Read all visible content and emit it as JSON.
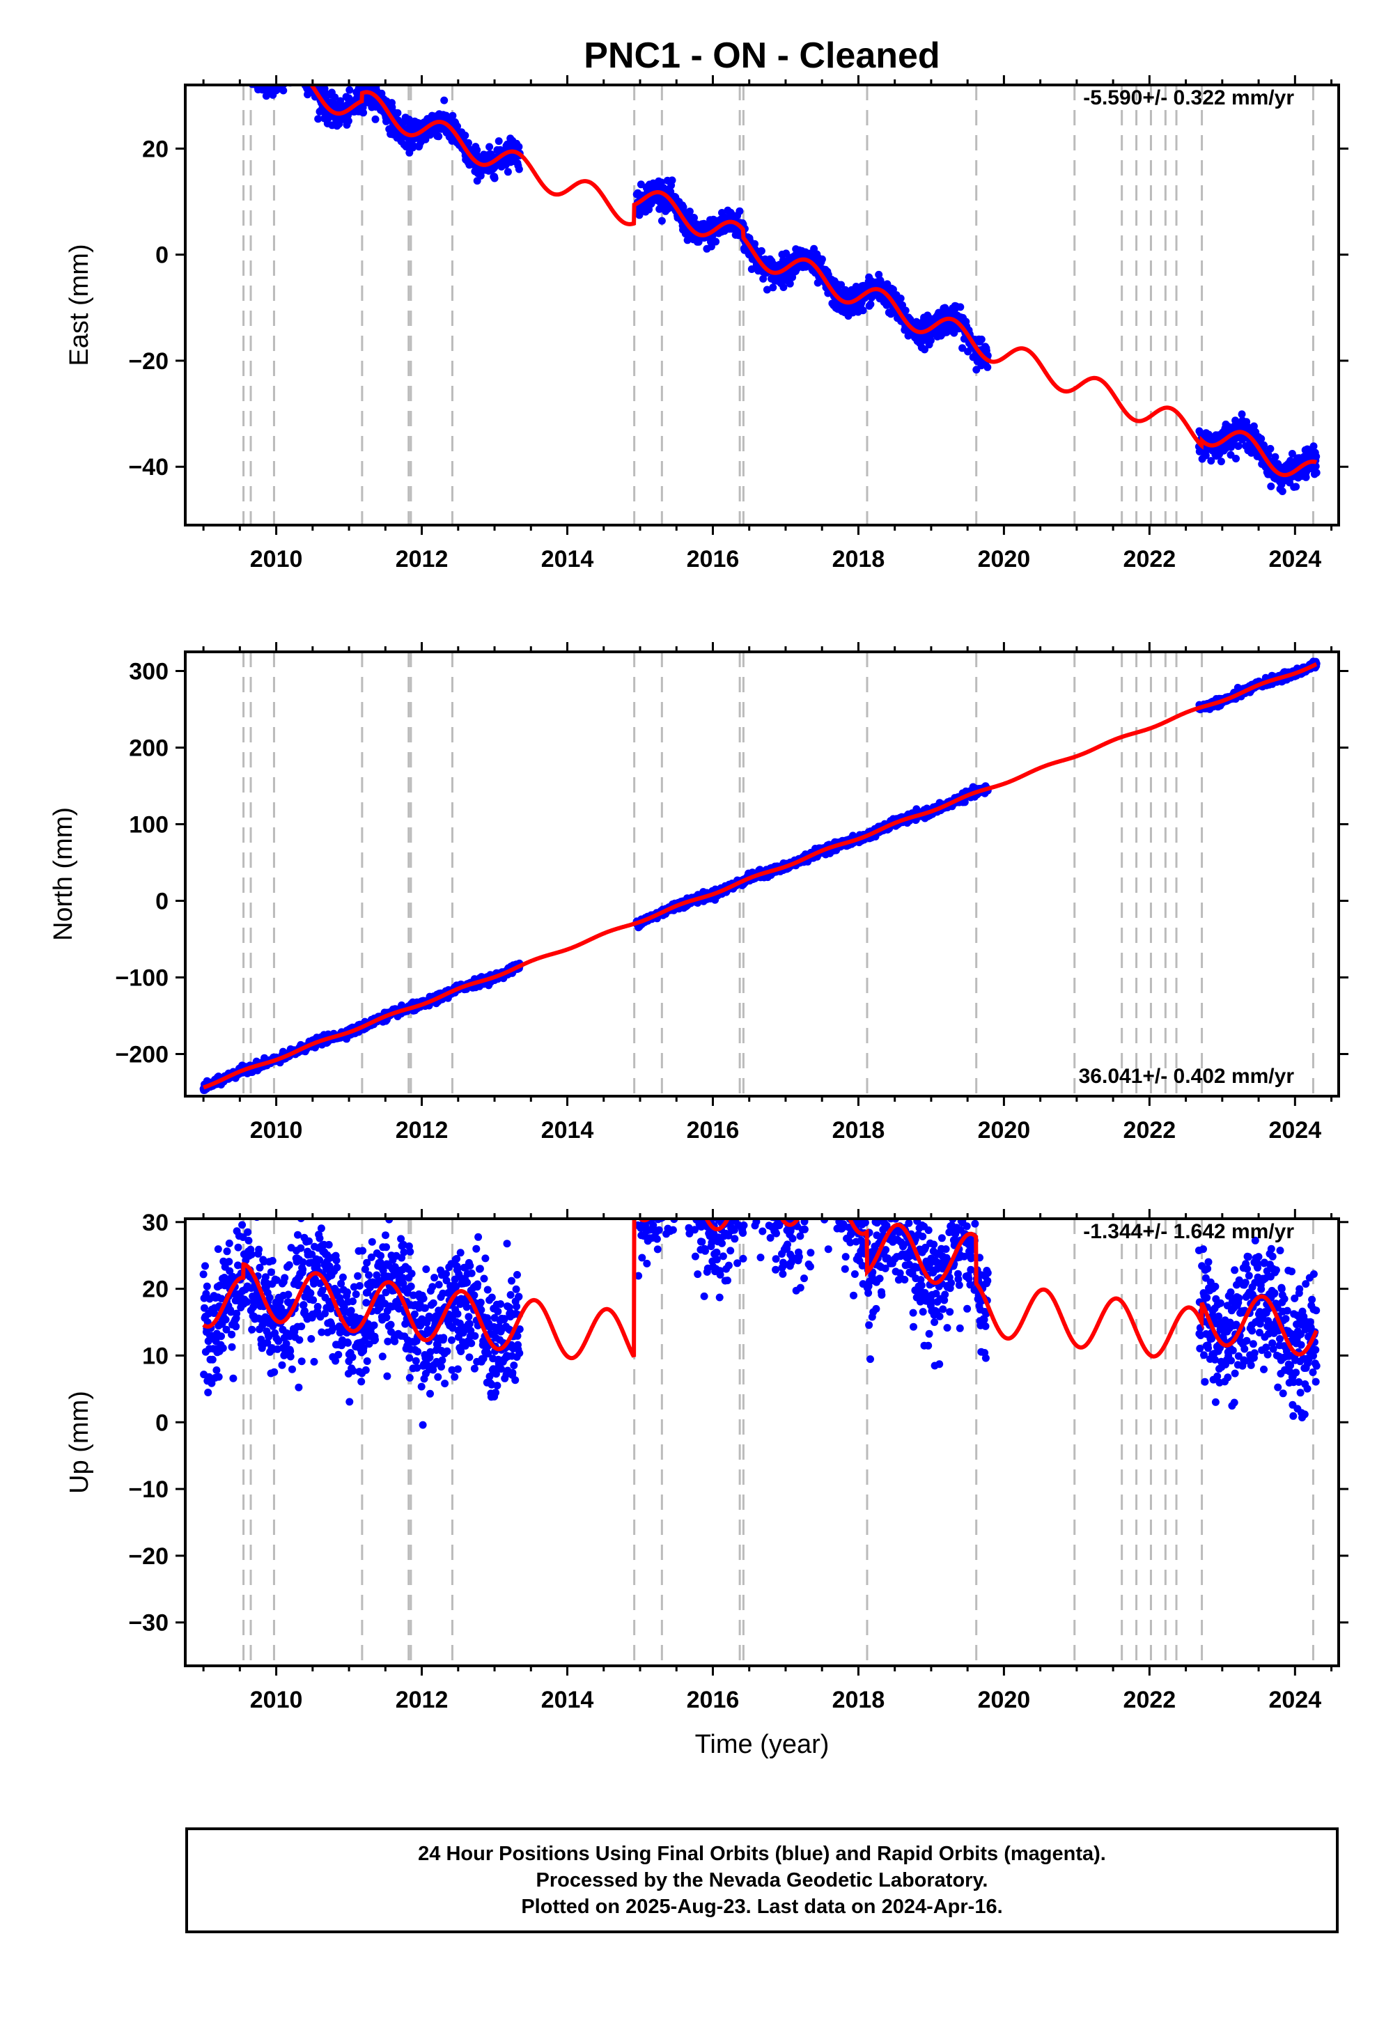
{
  "figure": {
    "title": "PNC1  - ON - Cleaned",
    "xlabel": "Time (year)",
    "x_ticks": [
      "2010",
      "2012",
      "2014",
      "2016",
      "2018",
      "2020",
      "2022",
      "2024"
    ],
    "colors": {
      "data": "#0000ff",
      "model": "#ff0000",
      "steps": "#bbbbbb",
      "frame": "#000000"
    },
    "footer": {
      "line1": "24 Hour Positions Using Final Orbits (blue) and Rapid Orbits (magenta).",
      "line2": "Processed by the Nevada Geodetic Laboratory.",
      "line3": "Plotted on 2025-Aug-23. Last data on 2024-Apr-16."
    }
  },
  "chart_data": [
    {
      "type": "scatter",
      "ylabel": "East (mm)",
      "rate_text": "-5.590+/- 0.322 mm/yr",
      "xlim": [
        2008.75,
        2024.6
      ],
      "ylim": [
        -51,
        32
      ],
      "yticks": [
        20,
        0,
        -20,
        -40
      ],
      "step_epochs": [
        2009.55,
        2009.65,
        2009.97,
        2011.18,
        2011.82,
        2011.85,
        2012.42,
        2014.92,
        2015.3,
        2016.37,
        2016.42,
        2018.12,
        2019.62,
        2020.97,
        2021.62,
        2021.82,
        2022.02,
        2022.22,
        2022.37,
        2022.72,
        2024.25
      ],
      "data_segments": [
        [
          2009.0,
          2013.35
        ],
        [
          2014.95,
          2019.78
        ],
        [
          2022.68,
          2024.3
        ]
      ],
      "model": {
        "intercept_year": 2016.0,
        "intercept": -1.0,
        "rate": -5.59,
        "annual_amp": 2.5,
        "phase": 0.05,
        "offsets": [
          [
            2009.55,
            1.2
          ],
          [
            2011.18,
            1.5
          ],
          [
            2014.92,
            3.5
          ],
          [
            2016.42,
            -1.5
          ],
          [
            2022.72,
            1.0
          ]
        ]
      },
      "scatter_sigma": 1.3
    },
    {
      "type": "scatter",
      "ylabel": "North (mm)",
      "rate_text": "36.041+/- 0.402 mm/yr",
      "xlim": [
        2008.75,
        2024.6
      ],
      "ylim": [
        -255,
        325
      ],
      "yticks": [
        300,
        200,
        100,
        0,
        -100,
        -200
      ],
      "step_epochs": [
        2009.55,
        2009.65,
        2009.97,
        2011.18,
        2011.82,
        2011.85,
        2012.42,
        2014.92,
        2015.3,
        2016.37,
        2016.42,
        2018.12,
        2019.62,
        2020.97,
        2021.62,
        2021.82,
        2022.02,
        2022.22,
        2022.37,
        2022.72,
        2024.25
      ],
      "data_segments": [
        [
          2009.0,
          2013.35
        ],
        [
          2014.95,
          2019.78
        ],
        [
          2022.68,
          2024.3
        ]
      ],
      "model": {
        "intercept_year": 2016.0,
        "intercept": 10.0,
        "rate": 36.041,
        "annual_amp": 1.5,
        "phase": 0.3,
        "offsets": []
      },
      "scatter_sigma": 2.5
    },
    {
      "type": "scatter",
      "ylabel": "Up (mm)",
      "rate_text": "-1.344+/- 1.642 mm/yr",
      "xlim": [
        2008.75,
        2024.6
      ],
      "ylim": [
        -36.5,
        30.5
      ],
      "yticks": [
        30,
        20,
        10,
        0,
        -10,
        -20,
        -30
      ],
      "step_epochs": [
        2009.55,
        2009.65,
        2009.97,
        2011.18,
        2011.82,
        2011.85,
        2012.42,
        2014.92,
        2015.3,
        2016.37,
        2016.42,
        2018.12,
        2019.62,
        2020.97,
        2021.62,
        2021.82,
        2022.02,
        2022.22,
        2022.37,
        2022.72,
        2024.25
      ],
      "data_segments": [
        [
          2009.0,
          2013.35
        ],
        [
          2014.95,
          2019.78
        ],
        [
          2022.68,
          2024.3
        ]
      ],
      "model": {
        "intercept_year": 2016.0,
        "intercept": 9.0,
        "rate": -1.344,
        "annual_amp": 4.0,
        "phase": 0.3,
        "offsets": [
          [
            2009.55,
            2.0
          ],
          [
            2014.92,
            22.0
          ],
          [
            2016.42,
            2.0
          ],
          [
            2018.12,
            -6.0
          ],
          [
            2019.62,
            -7.0
          ],
          [
            2022.72,
            3.0
          ]
        ]
      },
      "scatter_sigma": 4.5
    }
  ]
}
